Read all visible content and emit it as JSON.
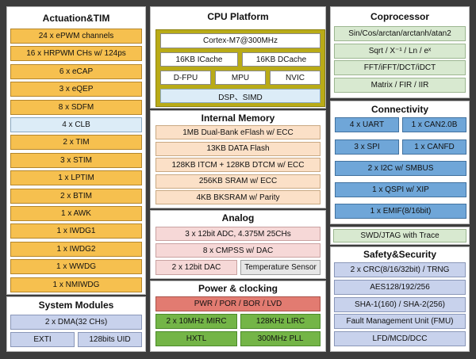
{
  "actuation": {
    "title": "Actuation&TIM",
    "items": [
      "24 x ePWM channels",
      "16 x HRPWM CHs w/ 124ps",
      "6 x eCAP",
      "3 x eQEP",
      "8 x SDFM",
      "4 x CLB",
      "2 x TIM",
      "3 x STIM",
      "1 x LPTIM",
      "2 x BTIM",
      "1 x AWK",
      "1 x IWDG1",
      "1 x IWDG2",
      "1 x WWDG",
      "1 x NMIWDG"
    ]
  },
  "system_modules": {
    "title": "System Modules",
    "dma": "2 x DMA(32 CHs)",
    "exti": "EXTI",
    "uid": "128bits UID"
  },
  "cpu": {
    "title": "CPU Platform",
    "core": "Cortex-M7@300MHz",
    "icache": "16KB ICache",
    "dcache": "16KB DCache",
    "dfpu": "D-FPU",
    "mpu": "MPU",
    "nvic": "NVIC",
    "dsp": "DSP、SIMD"
  },
  "memory": {
    "title": "Internal Memory",
    "items": [
      "1MB Dual-Bank eFlash w/ ECC",
      "13KB DATA Flash",
      "128KB ITCM + 128KB DTCM w/ ECC",
      "256KB SRAM w/ ECC",
      "4KB BKSRAM w/ Parity"
    ]
  },
  "analog": {
    "title": "Analog",
    "adc": "3 x 12bit ADC, 4.375M 25CHs",
    "cmpss": "8 x CMPSS w/ DAC",
    "dac": "2 x 12bit DAC",
    "temp": "Temperature Sensor"
  },
  "power": {
    "title": "Power & clocking",
    "pwr": "PWR / POR / BOR / LVD",
    "mirc": "2 x 10MHz MIRC",
    "lirc": "128KHz LIRC",
    "hxtl": "HXTL",
    "pll": "300MHz PLL"
  },
  "coprocessor": {
    "title": "Coprocessor",
    "items": [
      "Sin/Cos/arctan/arctanh/atan2",
      "Sqrt / X⁻¹ / Ln / eˣ",
      "FFT/iFFT/DCT/iDCT",
      "Matrix / FIR / IIR"
    ]
  },
  "connectivity": {
    "title": "Connectivity",
    "uart": "4 x UART",
    "can": "1 x CAN2.0B",
    "spi": "3 x SPI",
    "canfd": "1 x CANFD",
    "i2c": "2 x I2C w/ SMBUS",
    "qspi": "1 x QSPI w/ XIP",
    "emif": "1 x EMIF(8/16bit)"
  },
  "swd": {
    "label": "SWD/JTAG with Trace"
  },
  "safety": {
    "title": "Safety&Security",
    "items": [
      "2 x CRC(8/16/32bit) / TRNG",
      "AES128/192/256",
      "SHA-1(160) / SHA-2(256)",
      "Fault Management Unit (FMU)",
      "LFD/MCD/DCC"
    ]
  },
  "colors": {
    "background": "#3c3c3c",
    "orange": "#f6c04f",
    "blue": "#6fa6d8",
    "green": "#74b547",
    "red": "#e27b71",
    "olive": "#b9ab17"
  }
}
